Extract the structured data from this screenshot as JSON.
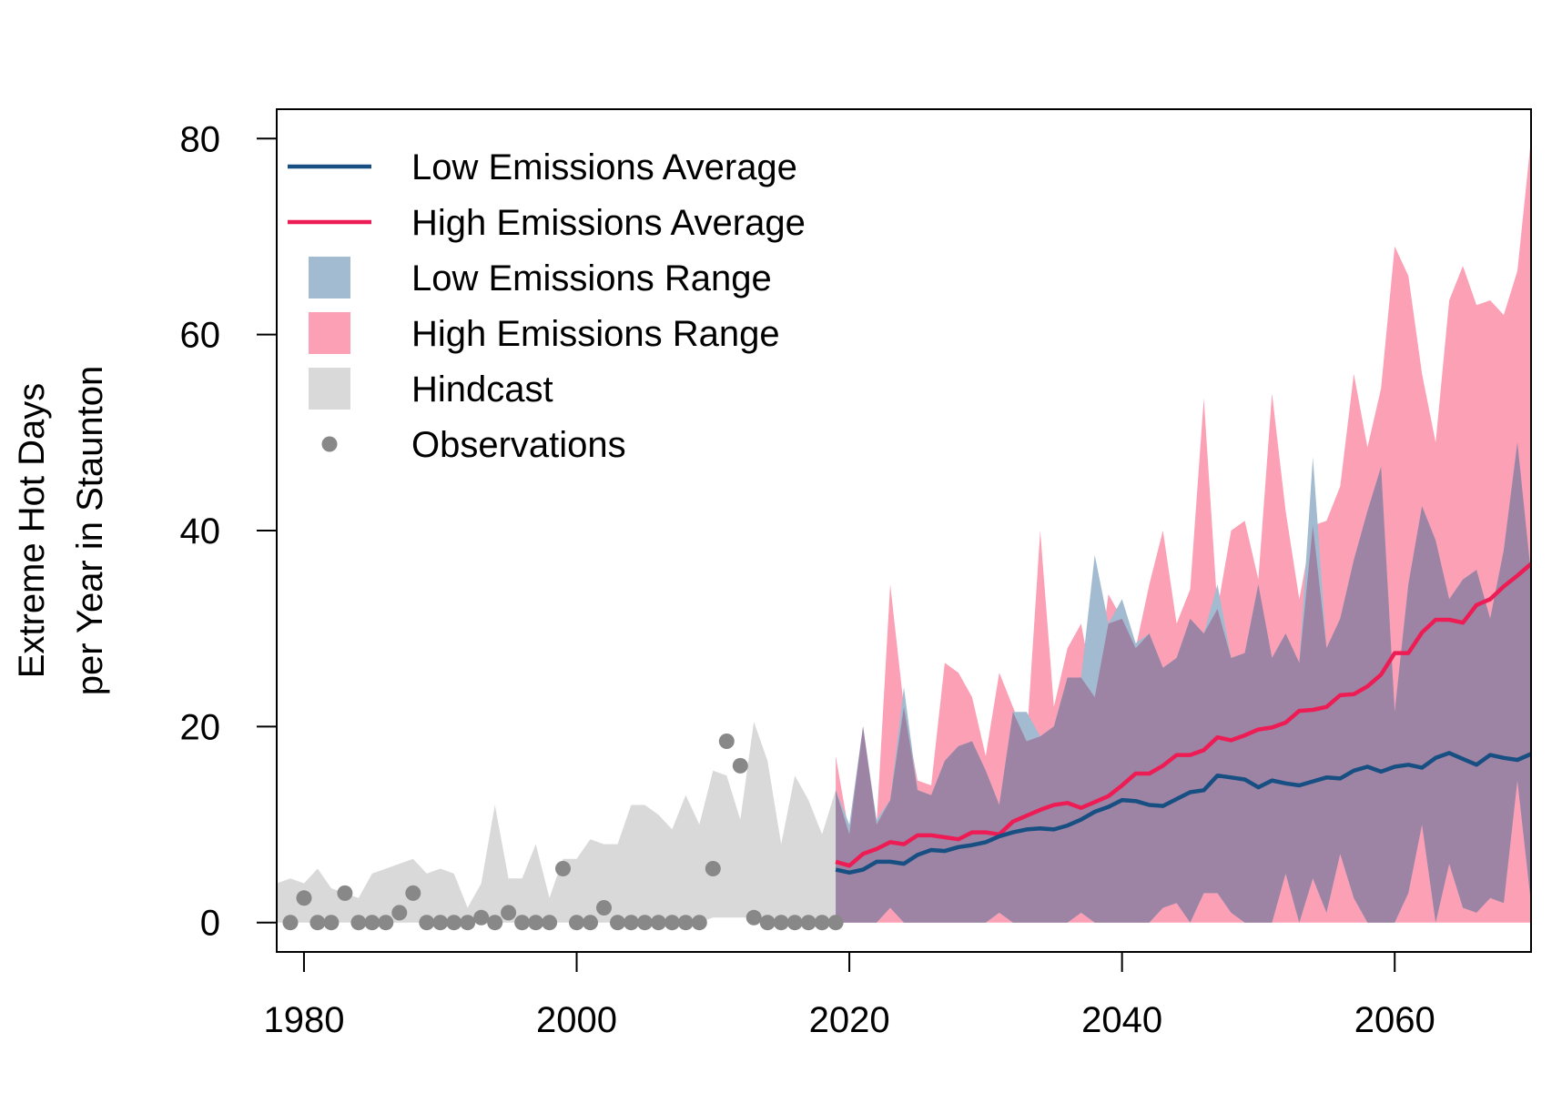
{
  "chart_data": {
    "type": "area",
    "title": "",
    "xlabel": "",
    "ylabel_lines": [
      "Extreme Hot Days",
      "per Year in Staunton"
    ],
    "xlim": [
      1978,
      2070
    ],
    "ylim": [
      -3,
      83
    ],
    "x_ticks": [
      1980,
      2000,
      2020,
      2040,
      2060
    ],
    "y_ticks": [
      0,
      20,
      40,
      60,
      80
    ],
    "grid": false,
    "legend_position": "top-left",
    "legend": [
      {
        "label": "Low Emissions Average",
        "kind": "line",
        "color": "#174f82"
      },
      {
        "label": "High Emissions Average",
        "kind": "line",
        "color": "#ee1c55"
      },
      {
        "label": "Low Emissions Range",
        "kind": "box",
        "color": "#a2bbd1"
      },
      {
        "label": "High Emissions Range",
        "kind": "box",
        "color": "#fca0b6"
      },
      {
        "label": "Hindcast",
        "kind": "box",
        "color": "#d9d9d9"
      },
      {
        "label": "Observations",
        "kind": "point",
        "color": "#888888"
      }
    ],
    "colors": {
      "low_avg": "#174f82",
      "high_avg": "#ee1c55",
      "low_range": "#a2bbd1",
      "high_range": "#fca0b6",
      "overlap": "#9d84a4",
      "hindcast": "#d9d9d9",
      "observations": "#888888"
    },
    "hindcast": {
      "x": [
        1978,
        1979,
        1980,
        1981,
        1982,
        1983,
        1984,
        1985,
        1986,
        1987,
        1988,
        1989,
        1990,
        1991,
        1992,
        1993,
        1994,
        1995,
        1996,
        1997,
        1998,
        1999,
        2000,
        2001,
        2002,
        2003,
        2004,
        2005,
        2006,
        2007,
        2008,
        2009,
        2010,
        2011,
        2012,
        2013,
        2014,
        2015,
        2016,
        2017,
        2018,
        2019
      ],
      "upper": [
        4,
        4.5,
        4,
        5.5,
        3.5,
        3,
        2.5,
        5,
        5.5,
        6,
        6.5,
        5,
        5.5,
        5,
        1.5,
        4,
        12,
        4.5,
        4.5,
        8,
        2.5,
        6.5,
        6.5,
        8.5,
        8,
        8,
        12,
        12,
        11,
        9.5,
        13,
        10,
        15.5,
        15,
        10.5,
        20.5,
        16.5,
        8,
        15,
        12.5,
        9,
        13.5
      ],
      "lower": [
        0,
        0,
        0,
        0,
        0,
        0,
        0,
        0,
        0,
        0,
        0,
        0,
        0,
        0,
        0,
        0,
        0,
        0,
        0,
        0,
        0,
        0,
        0,
        0,
        0,
        0,
        0,
        0,
        0,
        0,
        0,
        0,
        0.5,
        0.5,
        0.5,
        0.5,
        0,
        0,
        0,
        0,
        0,
        0
      ]
    },
    "observations": {
      "x": [
        1979,
        1980,
        1981,
        1982,
        1983,
        1984,
        1985,
        1986,
        1987,
        1988,
        1989,
        1990,
        1991,
        1992,
        1993,
        1994,
        1995,
        1996,
        1997,
        1998,
        1999,
        2000,
        2001,
        2002,
        2003,
        2004,
        2005,
        2006,
        2007,
        2008,
        2009,
        2010,
        2011,
        2012,
        2013,
        2014,
        2015,
        2016,
        2017,
        2018,
        2019
      ],
      "y": [
        0,
        2.5,
        0,
        0,
        3,
        0,
        0,
        0,
        1,
        3,
        0,
        0,
        0,
        0,
        0.5,
        0,
        1,
        0,
        0,
        0,
        5.5,
        0,
        0,
        1.5,
        0,
        0,
        0,
        0,
        0,
        0,
        0,
        5.5,
        18.5,
        16,
        0.5,
        0,
        0,
        0,
        0,
        0,
        0
      ]
    },
    "high_range": {
      "x": [
        2019,
        2020,
        2021,
        2022,
        2023,
        2024,
        2025,
        2026,
        2027,
        2028,
        2029,
        2030,
        2031,
        2032,
        2033,
        2034,
        2035,
        2036,
        2037,
        2038,
        2039,
        2040,
        2041,
        2042,
        2043,
        2044,
        2045,
        2046,
        2047,
        2048,
        2049,
        2050,
        2051,
        2052,
        2053,
        2054,
        2055,
        2056,
        2057,
        2058,
        2059,
        2060,
        2061,
        2062,
        2063,
        2064,
        2065,
        2066,
        2067,
        2068,
        2069,
        2070
      ],
      "upper": [
        17,
        9,
        20,
        10,
        34.5,
        22,
        14.5,
        14,
        26.5,
        25.5,
        23,
        17,
        25.5,
        22,
        18.5,
        40,
        22,
        28,
        30.5,
        23,
        33.5,
        31,
        28,
        34.5,
        40,
        30.5,
        34,
        53.5,
        32,
        40,
        41,
        35,
        54,
        42,
        33,
        40.5,
        41,
        44.5,
        56,
        48.5,
        54.5,
        69,
        66,
        56,
        49,
        63.5,
        67,
        63,
        63.5,
        62,
        66.5,
        80
      ],
      "lower": [
        0,
        0,
        0,
        0,
        0,
        0,
        0,
        0,
        0,
        0,
        0,
        0,
        0,
        0,
        0,
        0,
        0,
        0,
        0,
        0,
        0,
        0,
        0,
        0,
        0,
        0,
        0,
        0,
        0,
        0,
        0,
        0,
        0,
        0,
        0,
        0,
        0,
        0,
        0,
        0,
        0,
        0,
        0,
        0,
        0,
        0,
        0,
        0,
        0,
        0,
        0,
        0
      ]
    },
    "low_range": {
      "x": [
        2019,
        2020,
        2021,
        2022,
        2023,
        2024,
        2025,
        2026,
        2027,
        2028,
        2029,
        2030,
        2031,
        2032,
        2033,
        2034,
        2035,
        2036,
        2037,
        2038,
        2039,
        2040,
        2041,
        2042,
        2043,
        2044,
        2045,
        2046,
        2047,
        2048,
        2049,
        2050,
        2051,
        2052,
        2053,
        2054,
        2055,
        2056,
        2057,
        2058,
        2059,
        2060,
        2061,
        2062,
        2063,
        2064,
        2065,
        2066,
        2067,
        2068,
        2069,
        2070
      ],
      "upper": [
        13.5,
        10,
        20,
        10.5,
        12.5,
        24,
        13.5,
        13,
        16.5,
        18,
        18.5,
        15.5,
        12,
        21.5,
        21.5,
        19,
        20,
        25,
        25,
        37.5,
        30.5,
        33,
        28.5,
        29.5,
        26,
        27,
        31,
        29.5,
        34.5,
        27,
        27.5,
        34.5,
        27,
        29.5,
        26.5,
        47.5,
        28,
        31,
        37,
        42,
        46.5,
        21.5,
        34.5,
        42.5,
        39,
        33,
        35,
        36,
        31,
        38,
        49,
        35.5
      ],
      "lower": [
        0,
        0,
        0,
        0,
        1.5,
        0,
        0,
        0,
        0,
        0,
        0,
        0,
        1,
        0,
        0,
        0,
        0,
        0,
        1,
        0,
        0,
        0,
        0,
        0,
        1.5,
        2,
        0,
        3,
        3,
        1,
        0,
        0,
        0,
        5,
        0,
        4.5,
        1,
        7,
        2.5,
        0,
        0,
        0,
        3,
        10,
        0,
        6,
        1.5,
        1,
        2.5,
        2,
        14.5,
        2
      ]
    },
    "series": [
      {
        "name": "High Emissions Average",
        "x": [
          2019,
          2020,
          2021,
          2022,
          2023,
          2024,
          2025,
          2026,
          2027,
          2028,
          2029,
          2030,
          2031,
          2032,
          2033,
          2034,
          2035,
          2036,
          2037,
          2038,
          2039,
          2040,
          2041,
          2042,
          2043,
          2044,
          2045,
          2046,
          2047,
          2048,
          2049,
          2050,
          2051,
          2052,
          2053,
          2054,
          2055,
          2056,
          2057,
          2058,
          2059,
          2060,
          2061,
          2062,
          2063,
          2064,
          2065,
          2066,
          2067,
          2068,
          2069,
          2070
        ],
        "values": [
          6.2,
          5.8,
          7,
          7.5,
          8.2,
          8,
          8.9,
          8.9,
          8.7,
          8.5,
          9.2,
          9.2,
          9,
          10.3,
          10.9,
          11.5,
          12,
          12.2,
          11.7,
          12.3,
          12.9,
          14,
          15.2,
          15.2,
          16,
          17.1,
          17.1,
          17.6,
          18.9,
          18.6,
          19.1,
          19.7,
          19.9,
          20.4,
          21.6,
          21.7,
          22,
          23.2,
          23.3,
          24.1,
          25.3,
          27.5,
          27.5,
          29.6,
          30.9,
          30.9,
          30.6,
          32.4,
          33,
          34.3,
          35.4,
          36.6
        ]
      },
      {
        "name": "Low Emissions Average",
        "x": [
          2019,
          2020,
          2021,
          2022,
          2023,
          2024,
          2025,
          2026,
          2027,
          2028,
          2029,
          2030,
          2031,
          2032,
          2033,
          2034,
          2035,
          2036,
          2037,
          2038,
          2039,
          2040,
          2041,
          2042,
          2043,
          2044,
          2045,
          2046,
          2047,
          2048,
          2049,
          2050,
          2051,
          2052,
          2053,
          2054,
          2055,
          2056,
          2057,
          2058,
          2059,
          2060,
          2061,
          2062,
          2063,
          2064,
          2065,
          2066,
          2067,
          2068,
          2069,
          2070
        ],
        "values": [
          5.4,
          5.1,
          5.4,
          6.2,
          6.2,
          6,
          6.9,
          7.4,
          7.3,
          7.7,
          7.9,
          8.2,
          8.8,
          9.2,
          9.5,
          9.6,
          9.5,
          9.9,
          10.5,
          11.3,
          11.8,
          12.5,
          12.4,
          12,
          11.9,
          12.6,
          13.3,
          13.5,
          15,
          14.8,
          14.6,
          13.8,
          14.5,
          14.2,
          14,
          14.4,
          14.8,
          14.7,
          15.5,
          15.9,
          15.4,
          15.9,
          16.1,
          15.8,
          16.8,
          17.3,
          16.7,
          16.1,
          17.1,
          16.8,
          16.6,
          17.2
        ]
      }
    ]
  }
}
